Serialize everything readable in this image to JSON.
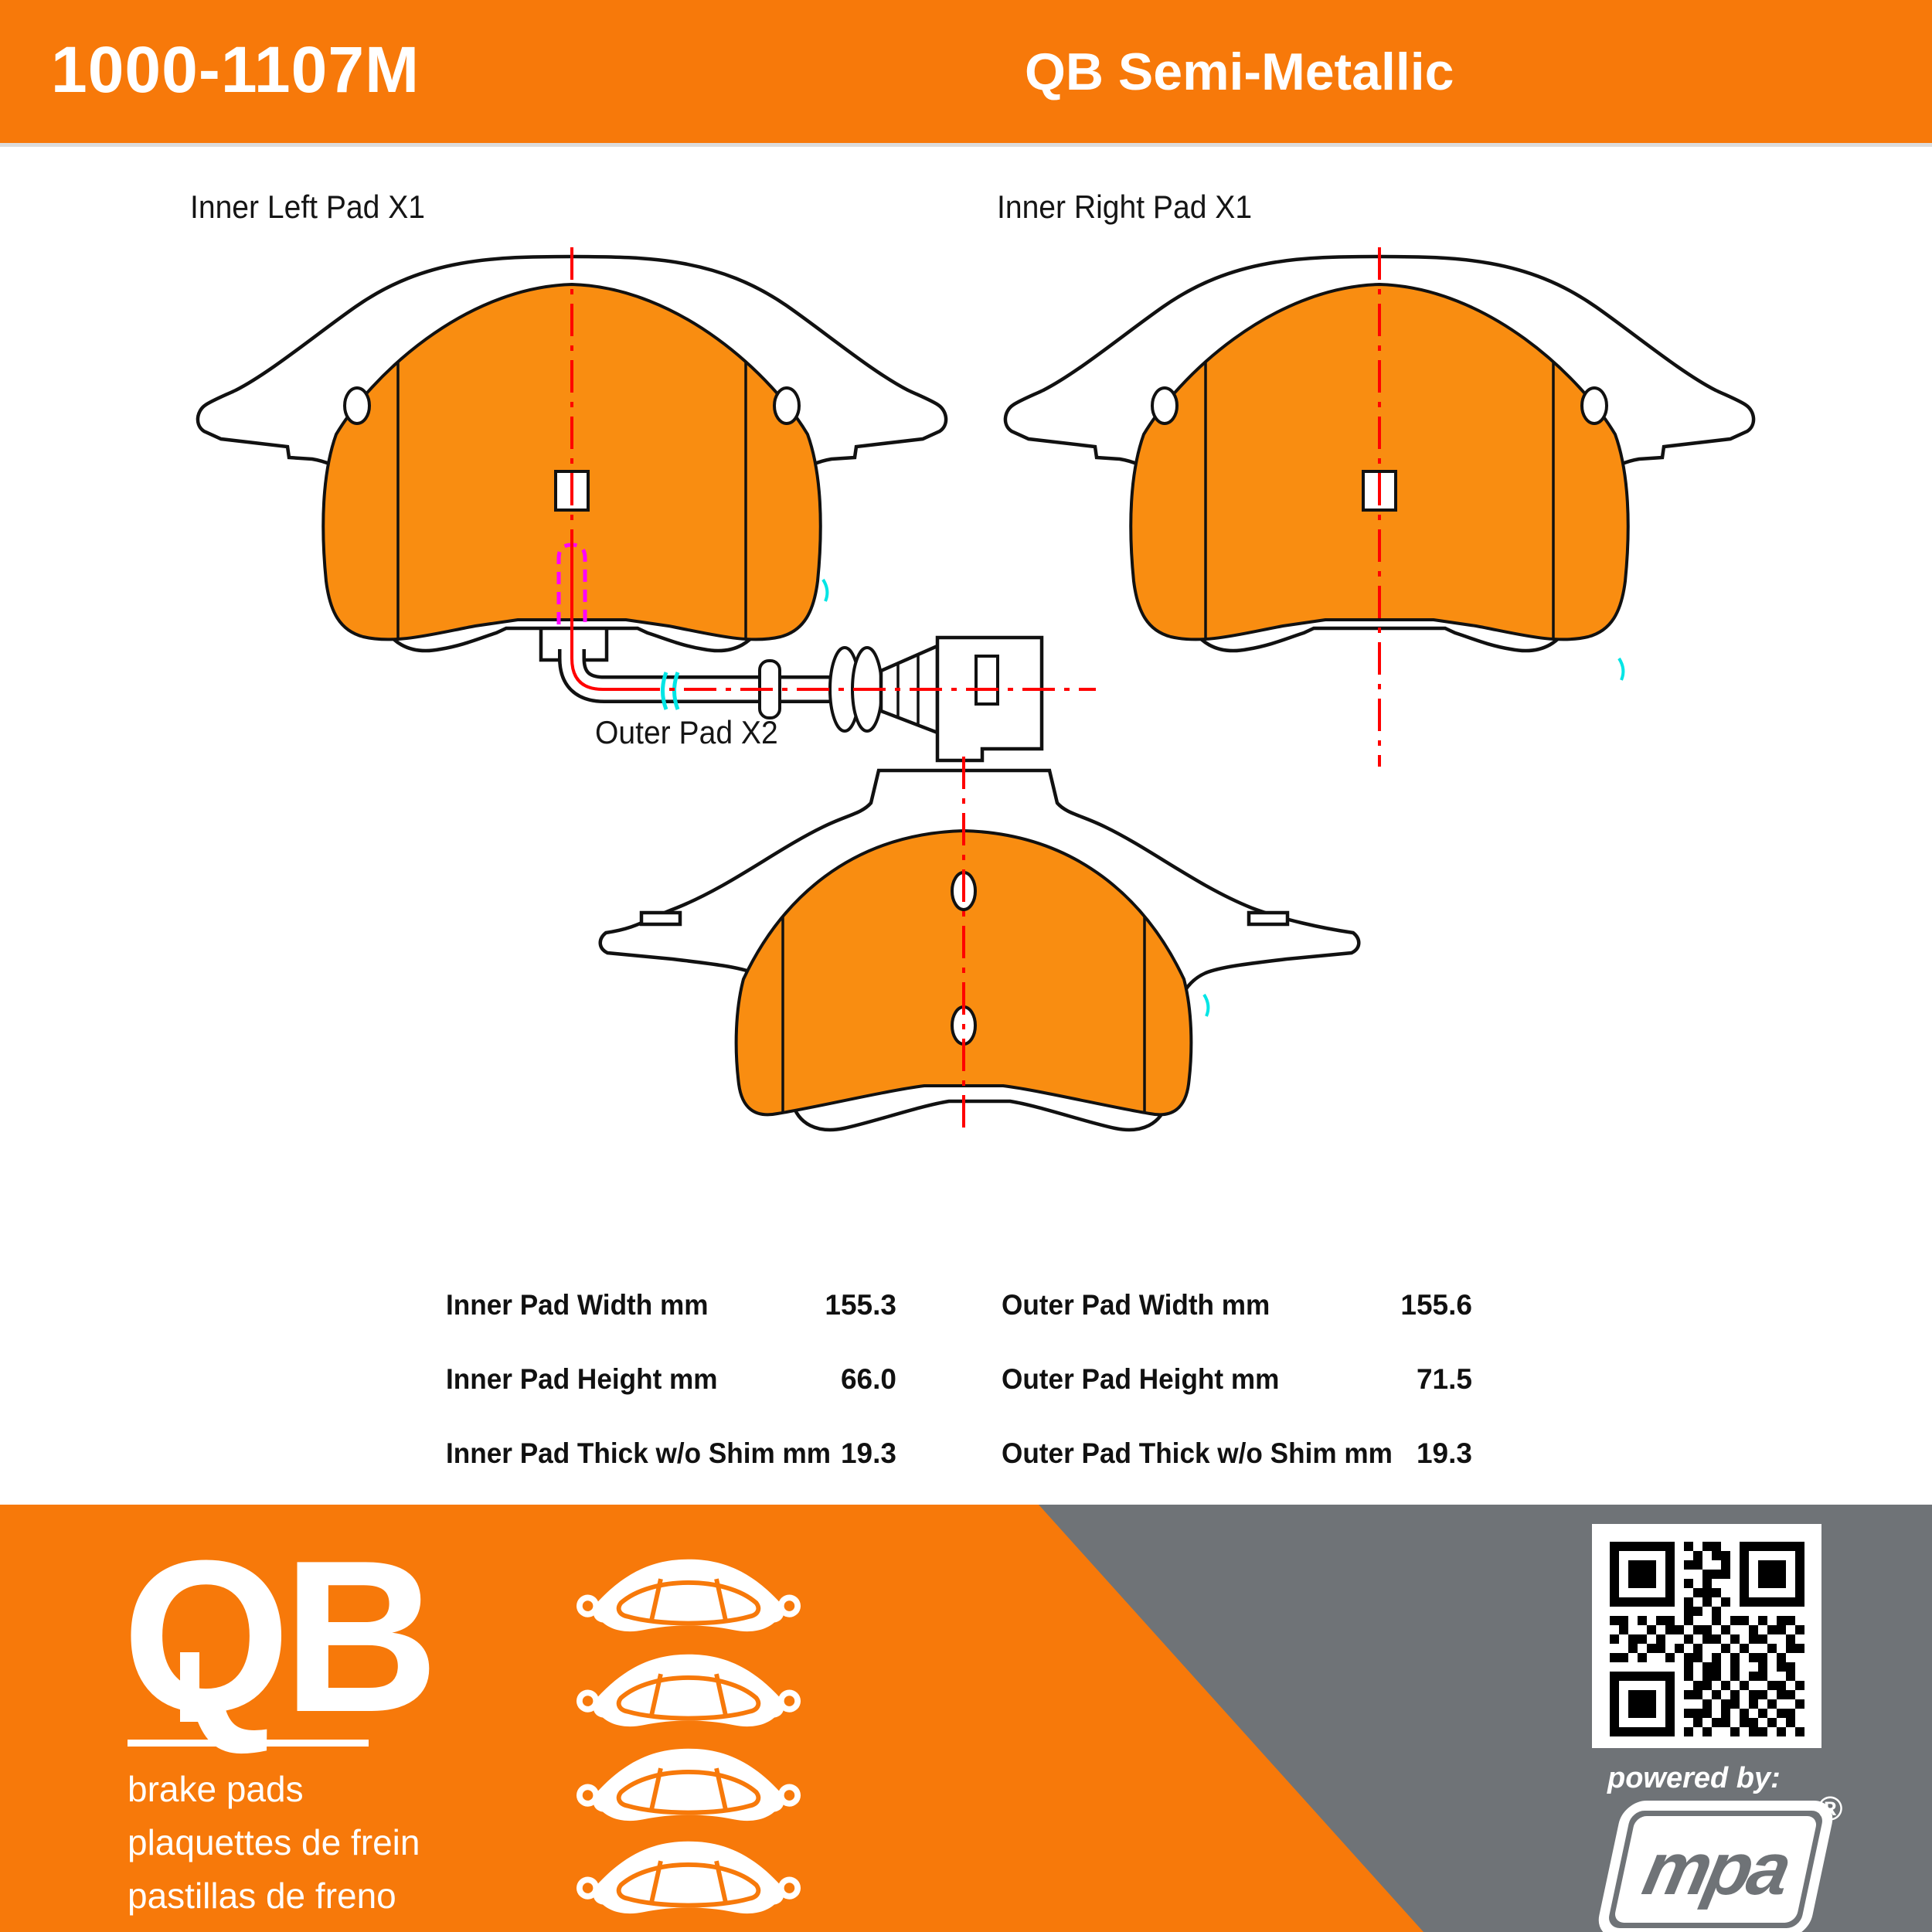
{
  "header": {
    "part_number": "1000-1107M",
    "product_line": "QB Semi-Metallic",
    "bg_color": "#F7790A",
    "text_color": "#FFFFFF"
  },
  "diagram": {
    "inner_left_label": "Inner Left Pad X1",
    "inner_right_label": "Inner Right Pad X1",
    "outer_label": "Outer Pad X2",
    "pad_fill": "#F98D11",
    "outline_color": "#111111",
    "centerline_color": "#FF0000",
    "sensor_marker_color": "#FF00FF",
    "break_mark_color": "#00E5E5"
  },
  "specs": {
    "left": [
      {
        "label": "Inner Pad Width mm",
        "value": "155.3"
      },
      {
        "label": "Inner Pad Height mm",
        "value": "66.0"
      },
      {
        "label": "Inner Pad Thick w/o Shim mm",
        "value": "19.3"
      }
    ],
    "right": [
      {
        "label": "Outer Pad Width mm",
        "value": "155.6"
      },
      {
        "label": "Outer Pad Height mm",
        "value": "71.5"
      },
      {
        "label": "Outer Pad Thick w/o Shim mm",
        "value": "19.3"
      }
    ]
  },
  "footer": {
    "logo_text": "QB",
    "tagline_lines": [
      "brake pads",
      "plaquettes de frein",
      "pastillas de freno"
    ],
    "powered_by": "powered by:",
    "brand": "mpa",
    "registered_mark": "®",
    "orange": "#F7790A",
    "gray": "#6F7377",
    "qr_modules": [
      "111111101011001111111",
      "100000100101101000001",
      "101110101100101011101",
      "101110100011101011101",
      "101110101010001011101",
      "100000100111001000001",
      "111111101010101111111",
      "000000001101000000000",
      "110101101001011010110",
      "010010110110100101101",
      "101101001011010110010",
      "001011010100101001011",
      "110100101101010110100",
      "000000001011010010110",
      "111111101011010110010",
      "100000100110101001101",
      "101110101101010110110",
      "101110100010110101001",
      "101110101110101010110",
      "100000100101101101010",
      "111111101010010110101"
    ]
  }
}
